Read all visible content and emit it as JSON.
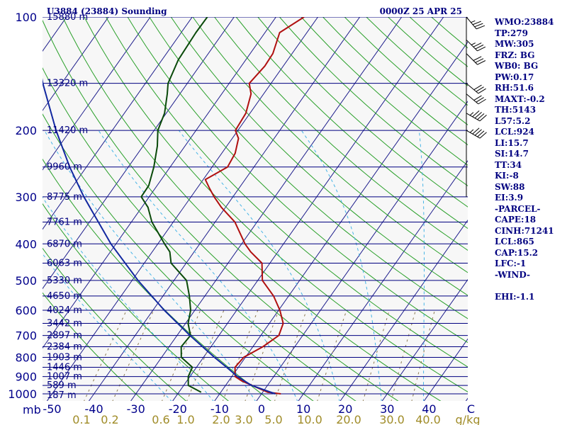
{
  "header": {
    "station_title": "U3884 (23884) Sounding",
    "valid_time": "0000Z 25 APR 25"
  },
  "indices": [
    "WMO:23884",
    "TP:279",
    "MW:305",
    "FRZ: BG",
    "WB0: BG",
    "PW:0.17",
    "RH:51.6",
    "MAXT:-0.2",
    "TH:5143",
    "L57:5.2",
    "LCL:924",
    "LI:15.7",
    "SI:14.7",
    "TT:34",
    "KI:-8",
    "SW:88",
    "EI:3.9",
    "-PARCEL-",
    "CAPE:18",
    "CINH:71241",
    "LCL:865",
    "CAP:15.2",
    "LFC:-1",
    "-WIND-",
    "",
    "EHI:-1.1"
  ],
  "colors": {
    "background": "#f7f7f7",
    "isobar": "#000080",
    "isotherm": "#1e1e8c",
    "dry_adiabat": "#2aa02a",
    "moist_adiabat": "#46b4e6",
    "mixing_ratio": "#8c7a50",
    "temperature": "#b01010",
    "dewpoint": "#0a4a0a",
    "parcel": "#1228a0",
    "text": "#000080",
    "mixing_label": "#a08c28"
  },
  "chart_data": {
    "type": "line",
    "title": "U3884 (23884) Sounding",
    "xlabel": "",
    "ylabel": "mb",
    "grid": true,
    "ylim": [
      1000,
      100
    ],
    "xlim": [
      -50,
      50
    ],
    "pressure_ticks": [
      "100",
      "200",
      "300",
      "400",
      "500",
      "600",
      "700",
      "800",
      "900",
      "1000"
    ],
    "pressure_values": [
      100,
      200,
      300,
      400,
      500,
      600,
      700,
      800,
      900,
      1000
    ],
    "temperature_ticks": [
      {
        "label": "-50",
        "value": -50
      },
      {
        "label": "-40",
        "value": -40
      },
      {
        "label": "-30",
        "value": -30
      },
      {
        "label": "-20",
        "value": -20
      },
      {
        "label": "-10",
        "value": -10
      },
      {
        "label": "0",
        "value": 0
      },
      {
        "label": "10",
        "value": 10
      },
      {
        "label": "20",
        "value": 20
      },
      {
        "label": "30",
        "value": 30
      },
      {
        "label": "40",
        "value": 40
      },
      {
        "label": "C",
        "value": 50
      }
    ],
    "mixing_ratio_labels": [
      "0.1",
      "0.2",
      "0.6",
      "1.0",
      "2.0",
      "3.0",
      "5.0",
      "10.0",
      "20.0",
      "30.0",
      "40.0"
    ],
    "mixing_ratio_unit": "g/kg",
    "height_labels": [
      {
        "p": 100,
        "label": "15880 m"
      },
      {
        "p": 150,
        "label": "13320 m"
      },
      {
        "p": 200,
        "label": "11420 m"
      },
      {
        "p": 250,
        "label": "9960 m"
      },
      {
        "p": 300,
        "label": "8775 m"
      },
      {
        "p": 350,
        "label": "7761 m"
      },
      {
        "p": 400,
        "label": "6870 m"
      },
      {
        "p": 450,
        "label": "6063 m"
      },
      {
        "p": 500,
        "label": "5330 m"
      },
      {
        "p": 550,
        "label": "4650 m"
      },
      {
        "p": 600,
        "label": "4024 m"
      },
      {
        "p": 650,
        "label": "3442 m"
      },
      {
        "p": 700,
        "label": "2897 m"
      },
      {
        "p": 750,
        "label": "2384 m"
      },
      {
        "p": 800,
        "label": "1903 m"
      },
      {
        "p": 850,
        "label": "1446 m"
      },
      {
        "p": 900,
        "label": "1007 m"
      },
      {
        "p": 950,
        "label": "589 m"
      },
      {
        "p": 1000,
        "label": "187 m"
      }
    ],
    "series": [
      {
        "key": "temperature",
        "points": [
          [
            1000,
            4.6
          ],
          [
            990,
            1.2
          ],
          [
            950,
            -3.7
          ],
          [
            925,
            -6.8
          ],
          [
            900,
            -9.2
          ],
          [
            850,
            -10.8
          ],
          [
            800,
            -10.4
          ],
          [
            750,
            -7.6
          ],
          [
            700,
            -5.7
          ],
          [
            650,
            -6.7
          ],
          [
            600,
            -9.7
          ],
          [
            550,
            -13.6
          ],
          [
            500,
            -18.9
          ],
          [
            450,
            -21.9
          ],
          [
            420,
            -26.5
          ],
          [
            400,
            -29.2
          ],
          [
            350,
            -35.3
          ],
          [
            320,
            -41.0
          ],
          [
            300,
            -44.5
          ],
          [
            285,
            -47.0
          ],
          [
            270,
            -49.5
          ],
          [
            250,
            -46.3
          ],
          [
            230,
            -46.8
          ],
          [
            210,
            -48.5
          ],
          [
            200,
            -50.6
          ],
          [
            180,
            -51.0
          ],
          [
            160,
            -53.0
          ],
          [
            150,
            -55.2
          ],
          [
            135,
            -54.4
          ],
          [
            125,
            -54.6
          ],
          [
            110,
            -56.5
          ],
          [
            100,
            -53.3
          ]
        ]
      },
      {
        "key": "dewpoint",
        "points": [
          [
            990,
            -14.7
          ],
          [
            950,
            -18.9
          ],
          [
            900,
            -20.4
          ],
          [
            850,
            -21.0
          ],
          [
            800,
            -25.3
          ],
          [
            750,
            -27.1
          ],
          [
            700,
            -26.8
          ],
          [
            650,
            -29.4
          ],
          [
            600,
            -31.0
          ],
          [
            550,
            -33.7
          ],
          [
            500,
            -37.0
          ],
          [
            450,
            -43.6
          ],
          [
            420,
            -45.8
          ],
          [
            400,
            -48.4
          ],
          [
            350,
            -55.1
          ],
          [
            320,
            -58.5
          ],
          [
            300,
            -61.9
          ],
          [
            280,
            -62.0
          ],
          [
            250,
            -63.9
          ],
          [
            220,
            -66.6
          ],
          [
            200,
            -69.1
          ],
          [
            180,
            -70.4
          ],
          [
            160,
            -73.0
          ],
          [
            150,
            -74.6
          ],
          [
            130,
            -76.1
          ],
          [
            110,
            -76.5
          ],
          [
            100,
            -76.4
          ]
        ]
      },
      {
        "key": "parcel",
        "points": [
          [
            1000,
            3.3
          ],
          [
            950,
            -3.8
          ],
          [
            900,
            -8.6
          ],
          [
            850,
            -12.8
          ],
          [
            800,
            -17.4
          ],
          [
            700,
            -26.9
          ],
          [
            600,
            -37.3
          ],
          [
            500,
            -48.6
          ],
          [
            400,
            -61.2
          ],
          [
            300,
            -75.6
          ],
          [
            250,
            -84.0
          ],
          [
            200,
            -93.4
          ],
          [
            150,
            -104.5
          ],
          [
            130,
            -109.5
          ],
          [
            115,
            -113.6
          ]
        ]
      }
    ],
    "wind_barbs": [
      {
        "p": 200,
        "direction": 300,
        "speed_kt": 45
      },
      {
        "p": 180,
        "direction": 300,
        "speed_kt": 45
      },
      {
        "p": 160,
        "direction": 310,
        "speed_kt": 30
      },
      {
        "p": 150,
        "direction": 310,
        "speed_kt": 30
      },
      {
        "p": 125,
        "direction": 315,
        "speed_kt": 30
      },
      {
        "p": 115,
        "direction": 315,
        "speed_kt": 35
      },
      {
        "p": 100,
        "direction": 320,
        "speed_kt": 35
      }
    ]
  }
}
